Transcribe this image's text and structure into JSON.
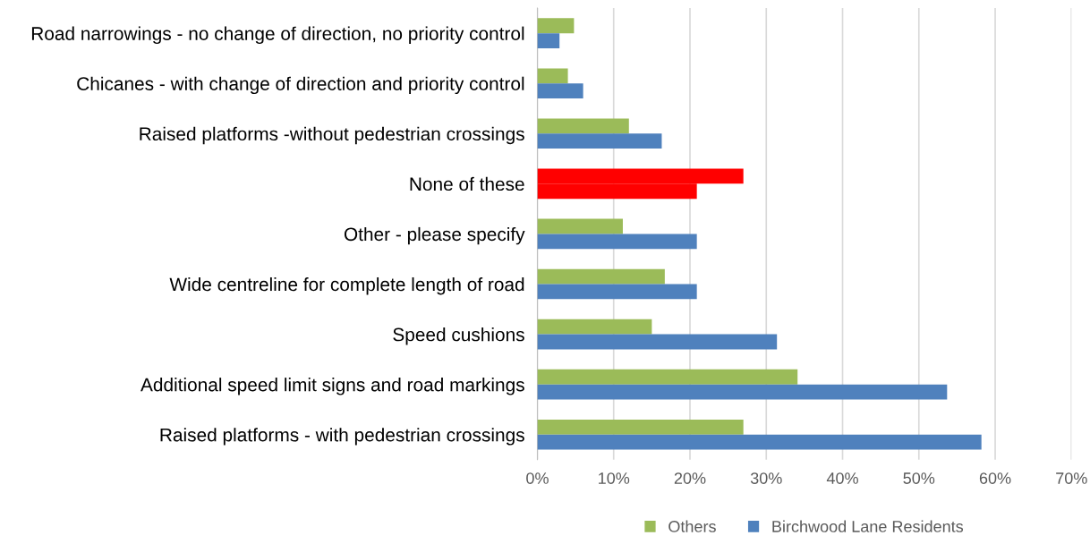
{
  "chart_data": {
    "type": "bar",
    "orientation": "horizontal",
    "categories": [
      "Road narrowings - no change of direction, no priority control",
      "Chicanes - with change of direction and priority control",
      "Raised platforms -without pedestrian crossings",
      "None of these",
      "Other - please specify",
      "Wide centreline for complete length of road",
      "Speed cushions",
      "Additional speed limit signs and road markings",
      "Raised platforms - with pedestrian crossings"
    ],
    "series": [
      {
        "name": "Others",
        "color": "#9bbb59",
        "colors": [
          "#9bbb59",
          "#9bbb59",
          "#9bbb59",
          "#ff0000",
          "#9bbb59",
          "#9bbb59",
          "#9bbb59",
          "#9bbb59",
          "#9bbb59"
        ],
        "values": [
          4.8,
          4.0,
          12.0,
          27.0,
          11.2,
          16.7,
          15.0,
          34.1,
          27.0
        ]
      },
      {
        "name": "Birchwood Lane Residents",
        "color": "#4f81bd",
        "colors": [
          "#4f81bd",
          "#4f81bd",
          "#4f81bd",
          "#ff0000",
          "#4f81bd",
          "#4f81bd",
          "#4f81bd",
          "#4f81bd",
          "#4f81bd"
        ],
        "values": [
          2.9,
          6.0,
          16.3,
          20.9,
          20.9,
          20.9,
          31.4,
          53.7,
          58.2
        ]
      }
    ],
    "xlim": [
      0,
      70
    ],
    "xticks": [
      {
        "value": 0,
        "label": "0%"
      },
      {
        "value": 10,
        "label": "10%"
      },
      {
        "value": 20,
        "label": "20%"
      },
      {
        "value": 30,
        "label": "30%"
      },
      {
        "value": 40,
        "label": "40%"
      },
      {
        "value": 50,
        "label": "50%"
      },
      {
        "value": 60,
        "label": "60%"
      },
      {
        "value": 70,
        "label": "70%"
      }
    ],
    "grid": "x",
    "legend": "bottom"
  }
}
